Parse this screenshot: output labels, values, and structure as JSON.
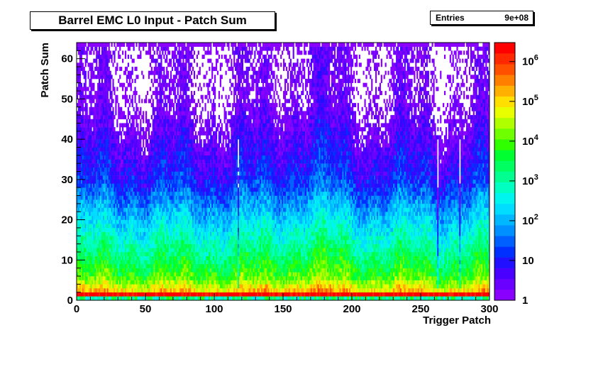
{
  "chart_data": {
    "type": "heatmap",
    "title": "Barrel EMC L0 Input - Patch Sum",
    "xlabel": "Trigger Patch",
    "ylabel": "Patch Sum",
    "xlim": [
      0,
      300
    ],
    "ylim": [
      0,
      64
    ],
    "x_ticks": [
      0,
      50,
      100,
      150,
      200,
      250,
      300
    ],
    "y_ticks": [
      0,
      10,
      20,
      30,
      40,
      50,
      60
    ],
    "z_scale": "log",
    "zlim": [
      1,
      3000000
    ],
    "z_tick_labels": [
      "1",
      "10",
      "10^2",
      "10^3",
      "10^4",
      "10^5",
      "10^6"
    ],
    "z_tick_values": [
      1,
      10,
      100,
      1000,
      10000,
      100000,
      1000000
    ],
    "bins_x": 300,
    "bins_y": 64,
    "counts_profile": [
      {
        "patch_sum": 0,
        "approx_counts": 500
      },
      {
        "patch_sum": 1,
        "approx_counts": 3000000
      },
      {
        "patch_sum": 2,
        "approx_counts": 100000
      },
      {
        "patch_sum": 5,
        "approx_counts": 10000
      },
      {
        "patch_sum": 10,
        "approx_counts": 2000
      },
      {
        "patch_sum": 20,
        "approx_counts": 150
      },
      {
        "patch_sum": 30,
        "approx_counts": 10
      },
      {
        "patch_sum": 40,
        "approx_counts": 3
      },
      {
        "patch_sum": 50,
        "approx_counts": 1
      },
      {
        "patch_sum": 63,
        "approx_counts": 1
      }
    ],
    "grid": false,
    "legend": "none"
  },
  "stats": {
    "entries_label": "Entries",
    "entries_value": "9e+08"
  },
  "palette": [
    "#8a00ff",
    "#6a00ff",
    "#4a00ff",
    "#2010ff",
    "#0030ff",
    "#0060ff",
    "#0090ff",
    "#00b8ff",
    "#00ddff",
    "#00f5ee",
    "#00ffc0",
    "#00ff90",
    "#00ff60",
    "#00ff30",
    "#30ff00",
    "#70ff00",
    "#b0ff00",
    "#e8ff00",
    "#ffe000",
    "#ffb000",
    "#ff8000",
    "#ff5000",
    "#ff2800",
    "#ff0000"
  ]
}
